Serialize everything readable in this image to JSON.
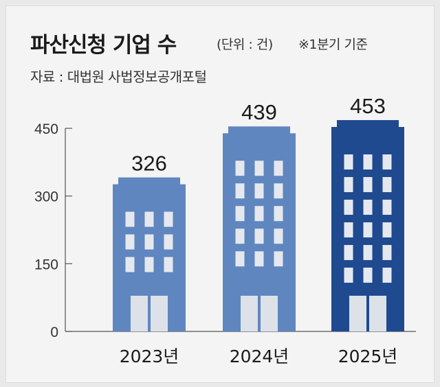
{
  "header": {
    "title": "파산신청 기업 수",
    "unit": "(단위 : 건)",
    "note": "※1분기 기준",
    "source": "자료 : 대법원 사법정보공개포털"
  },
  "colors": {
    "bar_light": "#5f86bf",
    "bar_dark": "#1f4a8f",
    "window": "#e5e8ee",
    "door": "#dde1e8",
    "axis": "#555555"
  },
  "chart_data": {
    "type": "bar",
    "title": "파산신청 기업 수",
    "xlabel": "",
    "ylabel": "",
    "categories": [
      "2023년",
      "2024년",
      "2025년"
    ],
    "values": [
      326,
      439,
      453
    ],
    "ylim": [
      0,
      450
    ],
    "yticks": [
      0,
      150,
      300,
      450
    ],
    "grid": false,
    "legend": "none"
  }
}
